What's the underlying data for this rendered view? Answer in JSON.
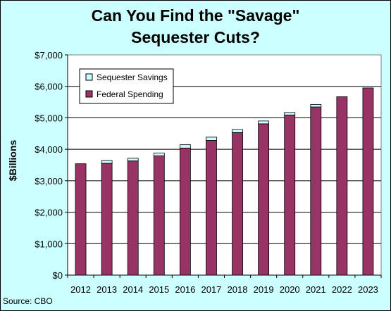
{
  "chart_data": {
    "type": "bar",
    "stacked": true,
    "title_line1": "Can You Find the \"Savage\"",
    "title_line2": "Sequester Cuts?",
    "ylabel": "$Billions",
    "source": "Source: CBO",
    "categories": [
      "2012",
      "2013",
      "2014",
      "2015",
      "2016",
      "2017",
      "2018",
      "2019",
      "2020",
      "2021",
      "2022",
      "2023"
    ],
    "ylim": [
      0,
      7000
    ],
    "yticks": [
      0,
      1000,
      2000,
      3000,
      4000,
      5000,
      6000,
      7000
    ],
    "ytick_labels": [
      "$0",
      "$1,000",
      "$2,000",
      "$3,000",
      "$4,000",
      "$5,000",
      "$6,000",
      "$7,000"
    ],
    "series": [
      {
        "name": "Federal Spending",
        "color": "#993366",
        "values": [
          3540,
          3555,
          3630,
          3790,
          4040,
          4285,
          4530,
          4810,
          5090,
          5345,
          5670,
          5950
        ]
      },
      {
        "name": "Sequester Savings",
        "color": "#ccffff",
        "values": [
          0,
          85,
          85,
          90,
          105,
          100,
          95,
          90,
          80,
          80,
          0,
          0
        ]
      }
    ],
    "grid": true,
    "legend_position": "top-left"
  },
  "colors": {
    "background": "#ccffff",
    "plot_area": "#ffffff"
  }
}
